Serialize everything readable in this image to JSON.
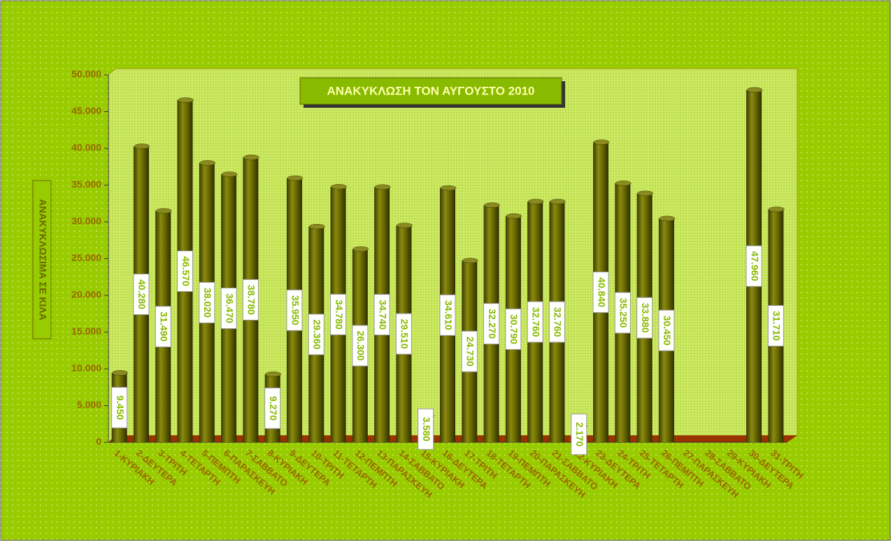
{
  "chart_data": {
    "type": "bar",
    "title": "ΑΝΑΚΥΚΛΩΣΗ ΤΟΝ ΑΥΓΟΥΣΤΟ 2010",
    "y_axis_label": "ΑΝΑΚΥΚΛΩΣΙΜΑ ΣΕ ΚΙΛΑ",
    "categories": [
      "1-ΚΥΡΙΑΚΗ",
      "2-ΔΕΥΤΕΡΑ",
      "3-ΤΡΙΤΗ",
      "4-ΤΕΤΑΡΤΗ",
      "5-ΠΕΜΠΤΗ",
      "6-ΠΑΡΑΣΚΕΥΗ",
      "7-ΣΑΒΒΑΤΟ",
      "8-ΚΥΡΙΑΚΗ",
      "9-ΔΕΥΤΕΡΑ",
      "10-ΤΡΙΤΗ",
      "11-ΤΕΤΑΡΤΗ",
      "12-ΠΕΜΠΤΗ",
      "13-ΠΑΡΑΣΚΕΥΗ",
      "14-ΣΑΒΒΑΤΟ",
      "15-ΚΥΡΙΑΚΗ",
      "16-ΔΕΥΤΕΡΑ",
      "17-ΤΡΙΤΗ",
      "18-ΤΕΤΑΡΤΗ",
      "19-ΠΕΜΠΤΗ",
      "20-ΠΑΡΑΣΚΕΥΗ",
      "21-ΣΑΒΒΑΤΟ",
      "22-ΚΥΡΙΑΚΗ",
      "23-ΔΕΥΤΕΡΑ",
      "24-ΤΡΙΤΗ",
      "25-ΤΕΤΑΡΤΗ",
      "26-ΠΕΜΠΤΗ",
      "27-ΠΑΡΑΣΚΕΥΗ",
      "28-ΣΑΒΒΑΤΟ",
      "29-ΚΥΡΙΑΚΗ",
      "30-ΔΕΥΤΕΡΑ",
      "31-ΤΡΙΤΗ"
    ],
    "values": [
      9450,
      40280,
      31490,
      46570,
      38020,
      36470,
      38780,
      9270,
      35950,
      29360,
      34780,
      26300,
      34740,
      29510,
      3580,
      34610,
      24730,
      32270,
      30790,
      32760,
      32760,
      2170,
      40840,
      35250,
      33880,
      30450,
      null,
      null,
      null,
      47960,
      31710
    ],
    "value_labels": [
      "9.450",
      "40.280",
      "31.490",
      "46.570",
      "38.020",
      "36.470",
      "38.780",
      "9.270",
      "35.950",
      "29.360",
      "34.780",
      "26.300",
      "34.740",
      "29.510",
      "3.580",
      "34.610",
      "24.730",
      "32.270",
      "30.790",
      "32.760",
      "32.760",
      "2.170",
      "40.840",
      "35.250",
      "33.880",
      "30.450",
      null,
      null,
      null,
      "47.960",
      "31.710"
    ],
    "color": "#6b6b00",
    "ylim": [
      0,
      50000
    ],
    "yticks": [
      0,
      {
        "value": 5000,
        "label": "5.000"
      },
      {
        "value": 10000,
        "label": "10.000"
      },
      {
        "value": 15000,
        "label": "15.000"
      },
      {
        "value": 20000,
        "label": "20.000"
      },
      {
        "value": 25000,
        "label": "25.000"
      },
      {
        "value": 30000,
        "label": "30.000"
      },
      {
        "value": 35000,
        "label": "35.000"
      },
      {
        "value": 40000,
        "label": "40.000"
      },
      {
        "value": 45000,
        "label": "45.000"
      },
      {
        "value": 50000,
        "label": "50.000"
      }
    ],
    "grid": false
  }
}
